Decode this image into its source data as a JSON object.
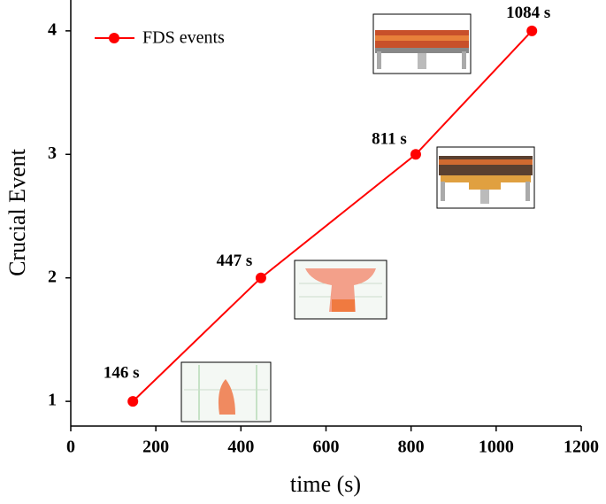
{
  "chart_data": {
    "type": "line",
    "xlabel": "time (s)",
    "ylabel": "Crucial Event",
    "x": [
      146,
      447,
      811,
      1084
    ],
    "x_labels": [
      "146 s",
      "447 s",
      "811 s",
      "1084 s"
    ],
    "series": [
      {
        "name": "FDS events",
        "color": "#ff0000",
        "values": [
          1,
          2,
          3,
          4
        ]
      }
    ],
    "xlim": [
      0,
      1200
    ],
    "xticks": [
      0,
      200,
      400,
      600,
      800,
      1000,
      1200
    ],
    "ylim": [
      0.8,
      4.25
    ],
    "yticks": [
      1,
      2,
      3,
      4
    ],
    "legend": "upper left"
  }
}
